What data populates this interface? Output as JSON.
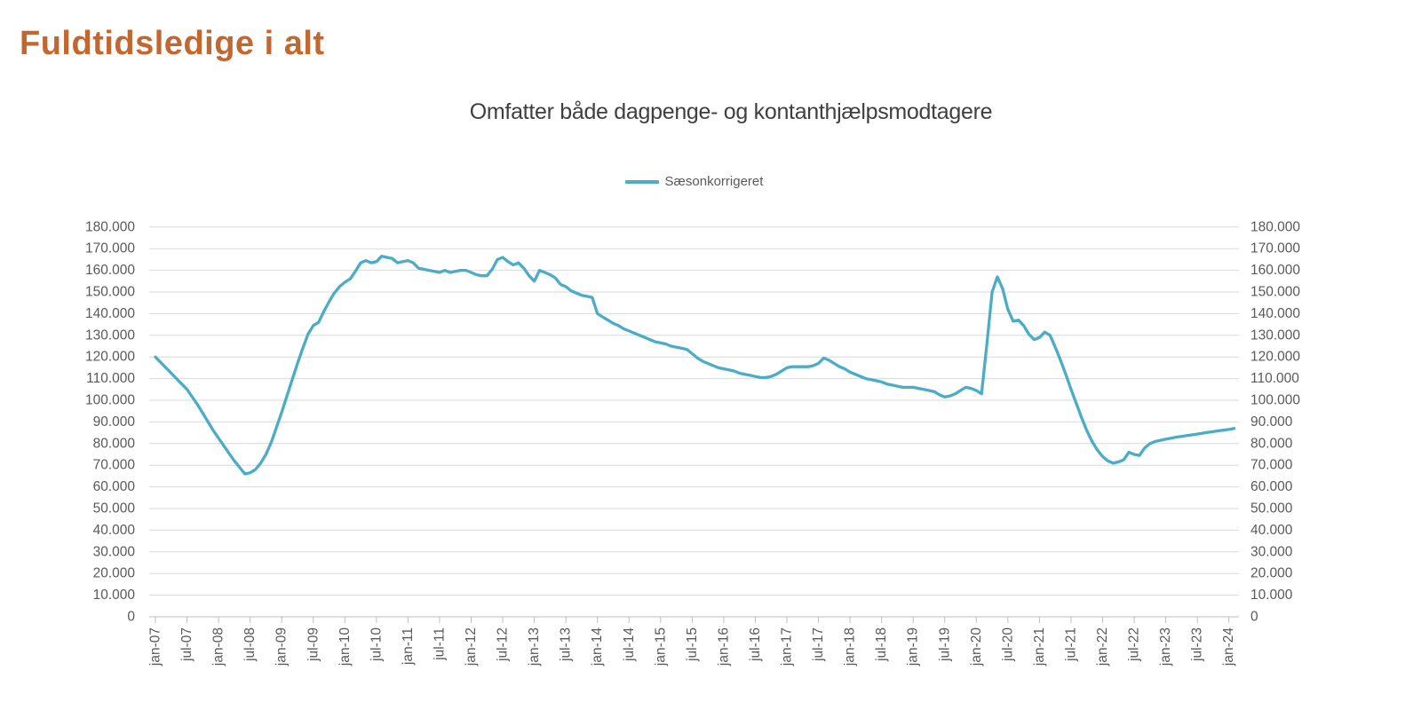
{
  "page_title": "Fuldtidsledige i alt",
  "colors": {
    "title": "#C1672F",
    "line": "#4BACC6",
    "grid": "#D9D9D9",
    "axis_line": "#BFBFBF",
    "axis_text": "#595959",
    "chart_title_text": "#3F3F3F"
  },
  "chart_data": {
    "type": "line",
    "title": "Omfatter både dagpenge- og kontanthjælpsmodtagere",
    "series_name": "Sæsonkorrigeret",
    "legend_position": "top-center",
    "grid": true,
    "x_frequency": "monthly",
    "x_range": [
      "jan-07",
      "feb-24"
    ],
    "x_tick_labels": [
      "jan-07",
      "jul-07",
      "jan-08",
      "jul-08",
      "jan-09",
      "jul-09",
      "jan-10",
      "jul-10",
      "jan-11",
      "jul-11",
      "jan-12",
      "jul-12",
      "jan-13",
      "jul-13",
      "jan-14",
      "jul-14",
      "jan-15",
      "jul-15",
      "jan-16",
      "jul-16",
      "jan-17",
      "jul-17",
      "jan-18",
      "jul-18",
      "jan-19",
      "jul-19",
      "jan-20",
      "jul-20",
      "jan-21",
      "jul-21",
      "jan-22",
      "jul-22",
      "jan-23",
      "jul-23",
      "jan-24"
    ],
    "x_label_every_n_months": 6,
    "ylim": [
      0,
      180000
    ],
    "y_ticks": [
      0,
      10000,
      20000,
      30000,
      40000,
      50000,
      60000,
      70000,
      80000,
      90000,
      100000,
      110000,
      120000,
      130000,
      140000,
      150000,
      160000,
      170000,
      180000
    ],
    "y_tick_labels": [
      "0",
      "10.000",
      "20.000",
      "30.000",
      "40.000",
      "50.000",
      "60.000",
      "70.000",
      "80.000",
      "90.000",
      "100.000",
      "110.000",
      "120.000",
      "130.000",
      "140.000",
      "150.000",
      "160.000",
      "170.000",
      "180.000"
    ],
    "values": [
      120000,
      117500,
      115000,
      112500,
      110000,
      107500,
      105000,
      101500,
      98000,
      94000,
      90000,
      86000,
      82500,
      79000,
      75500,
      72000,
      69000,
      66000,
      66500,
      68000,
      71000,
      75000,
      80500,
      87500,
      94500,
      102000,
      109500,
      117000,
      124000,
      130500,
      134500,
      136000,
      141000,
      145500,
      149500,
      152500,
      154500,
      156000,
      159500,
      163500,
      164500,
      163500,
      164000,
      166500,
      166000,
      165500,
      163500,
      164000,
      164500,
      163500,
      161000,
      160500,
      160000,
      159500,
      159000,
      160000,
      159000,
      159500,
      160000,
      160000,
      159000,
      158000,
      157500,
      157500,
      160500,
      165000,
      166000,
      164000,
      162500,
      163500,
      161000,
      157500,
      155000,
      160000,
      159000,
      158000,
      156500,
      153500,
      152500,
      150500,
      149500,
      148500,
      148000,
      147500,
      140000,
      138500,
      137000,
      135500,
      134500,
      133000,
      132000,
      131000,
      130000,
      129000,
      128000,
      127000,
      126500,
      126000,
      125000,
      124500,
      124000,
      123500,
      121500,
      119500,
      118000,
      117000,
      116000,
      115000,
      114500,
      114000,
      113500,
      112500,
      112000,
      111500,
      111000,
      110500,
      110500,
      111000,
      112000,
      113500,
      115000,
      115500,
      115500,
      115500,
      115500,
      116000,
      117000,
      119500,
      118500,
      117000,
      115500,
      114500,
      113000,
      112000,
      111000,
      110000,
      109500,
      109000,
      108500,
      107500,
      107000,
      106500,
      106000,
      106000,
      106000,
      105500,
      105000,
      104500,
      104000,
      102500,
      101500,
      102000,
      103000,
      104500,
      106000,
      105500,
      104500,
      103000,
      126000,
      150000,
      157000,
      151500,
      142000,
      136500,
      137000,
      134500,
      130500,
      128000,
      129000,
      131500,
      130000,
      124500,
      118500,
      112000,
      105000,
      98500,
      92000,
      86000,
      81000,
      77000,
      74000,
      72000,
      71000,
      71500,
      72500,
      76000,
      75000,
      74500,
      78000,
      80000,
      81000,
      81500,
      82000,
      82500,
      83000,
      83300,
      83700,
      84000,
      84400,
      84800,
      85200,
      85500,
      85900,
      86200,
      86500,
      87000
    ]
  }
}
